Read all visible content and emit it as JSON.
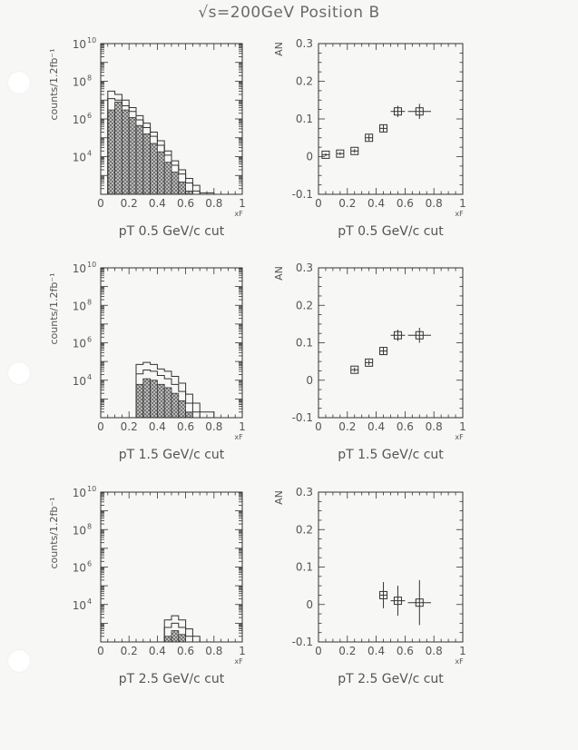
{
  "page_title": "√s=200GeV Position B",
  "chart_data": [
    {
      "type": "bar",
      "panel": "counts-ptcut-0.5",
      "ylabel": "counts/1.2fb⁻¹",
      "xlabel": "xF",
      "log_y": true,
      "ylim_exp": [
        2,
        10
      ],
      "y_ticks_exp": [
        4,
        6,
        8,
        10
      ],
      "xlim": [
        0,
        1
      ],
      "x_ticks": [
        "0",
        "0.2",
        "0.4",
        "0.6",
        "0.8",
        "1"
      ],
      "caption": "pT 0.5 GeV/c cut",
      "bin_edges": [
        0.05,
        0.1,
        0.15,
        0.2,
        0.25,
        0.3,
        0.35,
        0.4,
        0.45,
        0.5,
        0.55,
        0.6,
        0.65,
        0.7,
        0.8
      ],
      "outer": [
        30000000.0,
        20000000.0,
        10000000.0,
        4000000.0,
        1500000.0,
        600000.0,
        200000.0,
        70000.0,
        20000.0,
        6000.0,
        2000.0,
        700.0,
        300.0,
        120.0
      ],
      "middle": [
        12000000.0,
        10000000.0,
        5000000.0,
        2500000.0,
        900000.0,
        350000.0,
        120000.0,
        40000.0,
        12000.0,
        3500.0,
        1200.0,
        400.0,
        150.0
      ],
      "shaded": [
        3000000.0,
        8000000.0,
        3000000.0,
        1200000.0,
        450000.0,
        160000.0,
        50000.0,
        18000.0,
        5000.0,
        1500.0,
        450.0,
        150.0
      ]
    },
    {
      "type": "scatter",
      "panel": "asym-ptcut-0.5",
      "ylabel": "AN",
      "xlabel": "xF",
      "xlim": [
        0,
        1
      ],
      "ylim": [
        -0.1,
        0.3
      ],
      "x_ticks": [
        "0",
        "0.2",
        "0.4",
        "0.6",
        "0.8",
        "1"
      ],
      "y_ticks": [
        "-0.1",
        "0",
        "0.1",
        "0.2",
        "0.3"
      ],
      "caption": "pT 0.5 GeV/c cut",
      "points": [
        {
          "x": 0.05,
          "y": 0.005,
          "xerr": 0.025,
          "yerr": 0.004
        },
        {
          "x": 0.15,
          "y": 0.008,
          "xerr": 0.025,
          "yerr": 0.004
        },
        {
          "x": 0.25,
          "y": 0.015,
          "xerr": 0.025,
          "yerr": 0.005
        },
        {
          "x": 0.35,
          "y": 0.05,
          "xerr": 0.025,
          "yerr": 0.008
        },
        {
          "x": 0.45,
          "y": 0.075,
          "xerr": 0.025,
          "yerr": 0.01
        },
        {
          "x": 0.55,
          "y": 0.12,
          "xerr": 0.05,
          "yerr": 0.015
        },
        {
          "x": 0.7,
          "y": 0.12,
          "xerr": 0.08,
          "yerr": 0.02
        }
      ]
    },
    {
      "type": "bar",
      "panel": "counts-ptcut-1.5",
      "ylabel": "counts/1.2fb⁻¹",
      "xlabel": "xF",
      "log_y": true,
      "ylim_exp": [
        2,
        10
      ],
      "y_ticks_exp": [
        4,
        6,
        8,
        10
      ],
      "xlim": [
        0,
        1
      ],
      "x_ticks": [
        "0",
        "0.2",
        "0.4",
        "0.6",
        "0.8",
        "1"
      ],
      "caption": "pT 1.5 GeV/c cut",
      "bin_edges": [
        0.25,
        0.3,
        0.35,
        0.4,
        0.45,
        0.5,
        0.55,
        0.6,
        0.65,
        0.7,
        0.8
      ],
      "outer": [
        70000.0,
        90000.0,
        70000.0,
        40000.0,
        30000.0,
        16000.0,
        7000.0,
        1800.0,
        600.0,
        200.0
      ],
      "middle": [
        22000.0,
        35000.0,
        30000.0,
        18000.0,
        12000.0,
        6000.0,
        2500.0,
        600.0,
        200.0
      ],
      "shaded": [
        6000.0,
        12000.0,
        10000.0,
        6000.0,
        4000.0,
        2000.0,
        800.0,
        200.0
      ]
    },
    {
      "type": "scatter",
      "panel": "asym-ptcut-1.5",
      "ylabel": "AN",
      "xlabel": "xF",
      "xlim": [
        0,
        1
      ],
      "ylim": [
        -0.1,
        0.3
      ],
      "x_ticks": [
        "0",
        "0.2",
        "0.4",
        "0.6",
        "0.8",
        "1"
      ],
      "y_ticks": [
        "-0.1",
        "0",
        "0.1",
        "0.2",
        "0.3"
      ],
      "caption": "pT 1.5 GeV/c cut",
      "points": [
        {
          "x": 0.25,
          "y": 0.028,
          "xerr": 0.025,
          "yerr": 0.006
        },
        {
          "x": 0.35,
          "y": 0.047,
          "xerr": 0.025,
          "yerr": 0.007
        },
        {
          "x": 0.45,
          "y": 0.078,
          "xerr": 0.025,
          "yerr": 0.01
        },
        {
          "x": 0.55,
          "y": 0.12,
          "xerr": 0.05,
          "yerr": 0.015
        },
        {
          "x": 0.7,
          "y": 0.12,
          "xerr": 0.08,
          "yerr": 0.02
        }
      ]
    },
    {
      "type": "bar",
      "panel": "counts-ptcut-2.5",
      "ylabel": "counts/1.2fb⁻¹",
      "xlabel": "xF",
      "log_y": true,
      "ylim_exp": [
        2,
        10
      ],
      "y_ticks_exp": [
        4,
        6,
        8,
        10
      ],
      "xlim": [
        0,
        1
      ],
      "x_ticks": [
        "0",
        "0.2",
        "0.4",
        "0.6",
        "0.8",
        "1"
      ],
      "caption": "pT 2.5 GeV/c cut",
      "bin_edges": [
        0.45,
        0.5,
        0.55,
        0.6,
        0.65,
        0.7
      ],
      "outer": [
        1500.0,
        2500.0,
        1500.0,
        500.0,
        200.0
      ],
      "middle": [
        600.0,
        1000.0,
        600.0,
        200.0
      ],
      "shaded": [
        200.0,
        400.0,
        250.0,
        100.0
      ]
    },
    {
      "type": "scatter",
      "panel": "asym-ptcut-2.5",
      "ylabel": "AN",
      "xlabel": "xF",
      "xlim": [
        0,
        1
      ],
      "ylim": [
        -0.1,
        0.3
      ],
      "x_ticks": [
        "0",
        "0.2",
        "0.4",
        "0.6",
        "0.8",
        "1"
      ],
      "y_ticks": [
        "-0.1",
        "0",
        "0.1",
        "0.2",
        "0.3"
      ],
      "caption": "pT 2.5 GeV/c cut",
      "points": [
        {
          "x": 0.45,
          "y": 0.025,
          "xerr": 0.025,
          "yerr": 0.035
        },
        {
          "x": 0.55,
          "y": 0.01,
          "xerr": 0.05,
          "yerr": 0.04
        },
        {
          "x": 0.7,
          "y": 0.005,
          "xerr": 0.08,
          "yerr": 0.06
        }
      ]
    }
  ]
}
